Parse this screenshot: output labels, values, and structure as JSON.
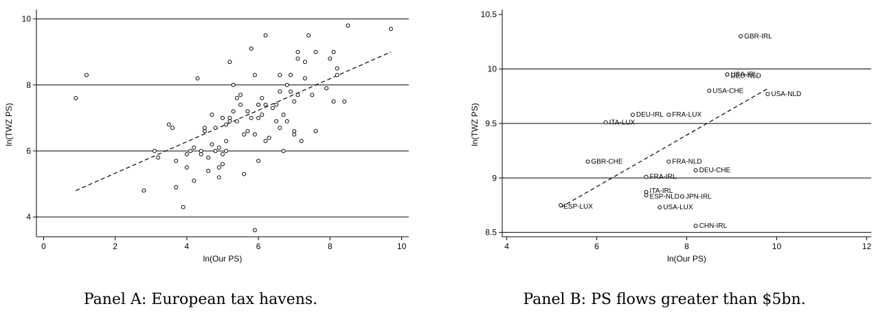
{
  "chart_data": [
    {
      "type": "scatter",
      "panel": "A",
      "xlabel": "ln(Our PS)",
      "ylabel": "ln(TWZ PS)",
      "xlim": [
        -0.2,
        10.2
      ],
      "ylim": [
        3.4,
        10.2
      ],
      "xticks": [
        0,
        2,
        4,
        6,
        8,
        10
      ],
      "yticks": [
        4,
        6,
        8,
        10
      ],
      "gridlines_y": [
        4,
        6,
        8,
        10
      ],
      "fit_line": [
        [
          0.9,
          4.8
        ],
        [
          9.7,
          9.0
        ]
      ],
      "caption": "Panel A: European tax havens.",
      "points": [
        [
          0.9,
          7.6
        ],
        [
          1.2,
          8.3
        ],
        [
          2.8,
          4.8
        ],
        [
          3.1,
          6.0
        ],
        [
          3.2,
          5.8
        ],
        [
          3.5,
          6.8
        ],
        [
          3.6,
          6.7
        ],
        [
          3.7,
          4.9
        ],
        [
          3.7,
          5.7
        ],
        [
          3.9,
          4.3
        ],
        [
          4.0,
          5.5
        ],
        [
          4.0,
          5.9
        ],
        [
          4.1,
          6.0
        ],
        [
          4.2,
          5.1
        ],
        [
          4.2,
          6.1
        ],
        [
          4.3,
          8.2
        ],
        [
          4.4,
          6.0
        ],
        [
          4.4,
          5.9
        ],
        [
          4.5,
          6.6
        ],
        [
          4.5,
          6.7
        ],
        [
          4.6,
          5.8
        ],
        [
          4.6,
          5.4
        ],
        [
          4.7,
          6.2
        ],
        [
          4.7,
          7.1
        ],
        [
          4.8,
          6.0
        ],
        [
          4.8,
          6.7
        ],
        [
          4.9,
          5.5
        ],
        [
          4.9,
          5.2
        ],
        [
          4.9,
          6.1
        ],
        [
          5.0,
          5.6
        ],
        [
          5.0,
          7.0
        ],
        [
          5.0,
          5.9
        ],
        [
          5.1,
          6.3
        ],
        [
          5.1,
          6.8
        ],
        [
          5.1,
          6.0
        ],
        [
          5.2,
          6.9
        ],
        [
          5.2,
          7.0
        ],
        [
          5.2,
          8.7
        ],
        [
          5.3,
          7.2
        ],
        [
          5.3,
          8.0
        ],
        [
          5.4,
          6.9
        ],
        [
          5.4,
          7.6
        ],
        [
          5.5,
          7.7
        ],
        [
          5.5,
          7.4
        ],
        [
          5.6,
          6.5
        ],
        [
          5.6,
          5.3
        ],
        [
          5.7,
          7.2
        ],
        [
          5.7,
          6.6
        ],
        [
          5.8,
          7.0
        ],
        [
          5.8,
          9.1
        ],
        [
          5.9,
          6.5
        ],
        [
          5.9,
          8.3
        ],
        [
          6.0,
          5.7
        ],
        [
          6.0,
          7.0
        ],
        [
          6.0,
          7.4
        ],
        [
          6.0,
          7.4
        ],
        [
          6.1,
          7.6
        ],
        [
          6.1,
          7.1
        ],
        [
          6.2,
          6.3
        ],
        [
          6.2,
          7.4
        ],
        [
          6.2,
          9.5
        ],
        [
          6.3,
          6.4
        ],
        [
          6.4,
          7.3
        ],
        [
          6.5,
          6.9
        ],
        [
          6.5,
          7.4
        ],
        [
          6.6,
          6.7
        ],
        [
          6.6,
          8.3
        ],
        [
          6.6,
          7.8
        ],
        [
          6.7,
          7.1
        ],
        [
          6.7,
          6.0
        ],
        [
          6.8,
          6.9
        ],
        [
          6.8,
          8.0
        ],
        [
          6.9,
          7.8
        ],
        [
          6.9,
          8.3
        ],
        [
          7.0,
          7.5
        ],
        [
          7.0,
          6.5
        ],
        [
          7.0,
          6.6
        ],
        [
          7.1,
          8.8
        ],
        [
          7.1,
          9.0
        ],
        [
          7.1,
          7.7
        ],
        [
          7.2,
          6.3
        ],
        [
          7.3,
          8.7
        ],
        [
          7.3,
          8.2
        ],
        [
          7.4,
          9.5
        ],
        [
          7.5,
          7.7
        ],
        [
          7.6,
          9.0
        ],
        [
          7.6,
          6.6
        ],
        [
          7.9,
          7.9
        ],
        [
          8.0,
          8.8
        ],
        [
          8.1,
          9.0
        ],
        [
          8.1,
          7.5
        ],
        [
          8.2,
          8.5
        ],
        [
          8.2,
          8.3
        ],
        [
          8.4,
          7.5
        ],
        [
          8.5,
          9.8
        ],
        [
          9.7,
          9.7
        ],
        [
          5.9,
          3.6
        ]
      ]
    },
    {
      "type": "scatter",
      "panel": "B",
      "xlabel": "ln(Our PS)",
      "ylabel": "ln(TWZ PS)",
      "xlim": [
        3.9,
        12.1
      ],
      "ylim": [
        8.46,
        10.52
      ],
      "xticks": [
        4,
        6,
        8,
        10,
        12
      ],
      "yticks": [
        8.5,
        9,
        9.5,
        10,
        10.5
      ],
      "ytick_labels": [
        "8.5",
        "9",
        "9.5",
        "10",
        "10.5"
      ],
      "gridlines_y": [
        8.5,
        9,
        9.5,
        10
      ],
      "fit_line": [
        [
          5.2,
          8.73
        ],
        [
          9.8,
          9.82
        ]
      ],
      "caption": "Panel B: PS flows greater than $5bn.",
      "points": [
        {
          "label": "GBR-IRL",
          "x": 9.2,
          "y": 10.3
        },
        {
          "label": "USA-IRL",
          "x": 8.9,
          "y": 9.95
        },
        {
          "label": "DEU-NLD",
          "x": 8.9,
          "y": 9.95
        },
        {
          "label": "USA-CHE",
          "x": 8.5,
          "y": 9.8
        },
        {
          "label": "USA-NLD",
          "x": 9.8,
          "y": 9.77
        },
        {
          "label": "DEU-IRL",
          "x": 6.8,
          "y": 9.58
        },
        {
          "label": "FRA-LUX",
          "x": 7.6,
          "y": 9.58
        },
        {
          "label": "ITA-LUX",
          "x": 6.2,
          "y": 9.51
        },
        {
          "label": "GBR-CHE",
          "x": 5.8,
          "y": 9.15
        },
        {
          "label": "FRA-NLD",
          "x": 7.6,
          "y": 9.15
        },
        {
          "label": "DEU-CHE",
          "x": 8.2,
          "y": 9.07
        },
        {
          "label": "FRA-IRL",
          "x": 7.1,
          "y": 9.01
        },
        {
          "label": "ITA-IRL",
          "x": 7.1,
          "y": 8.87
        },
        {
          "label": "ESP-NLD",
          "x": 7.1,
          "y": 8.84
        },
        {
          "label": "JPN-IRL",
          "x": 7.9,
          "y": 8.83
        },
        {
          "label": "ESP-LUX",
          "x": 5.2,
          "y": 8.75
        },
        {
          "label": "USA-LUX",
          "x": 7.4,
          "y": 8.73
        },
        {
          "label": "CHN-IRL",
          "x": 8.2,
          "y": 8.56
        }
      ]
    }
  ]
}
